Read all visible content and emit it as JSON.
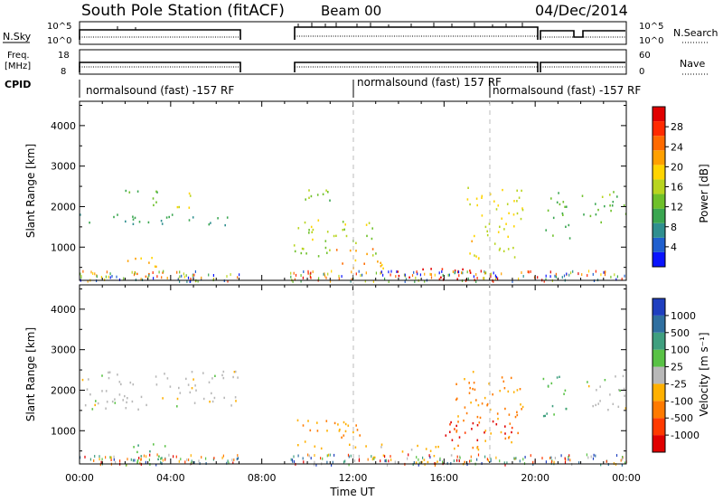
{
  "header": {
    "station": "South Pole Station (fitACF)",
    "beam": "Beam 00",
    "date": "04/Dec/2014"
  },
  "strip_labels": {
    "nsky": "N.Sky",
    "nsearch": "N.Search",
    "freq_line1": "Freq.",
    "freq_line2": "[MHz]",
    "nave": "Nave",
    "cpid": "CPID",
    "nsky_top": "10^5",
    "nsky_bottom": "10^0",
    "nsearch_top": "10^5",
    "nsearch_bottom": "10^0",
    "freq_top": "18",
    "freq_bottom": "8",
    "nave_top": "60",
    "nave_bottom": "0"
  },
  "cpid_segments": [
    {
      "label": "normalsound (fast) -157 RF",
      "start_hour": 0.0
    },
    {
      "label": "normalsound (fast) 157 RF",
      "start_hour": 12.0
    },
    {
      "label": "normalsound (fast) -157 RF",
      "start_hour": 18.0
    }
  ],
  "axes": {
    "ylabel": "Slant Range [km]",
    "xlabel": "Time UT",
    "xticks": [
      "00:00",
      "04:00",
      "08:00",
      "12:00",
      "16:00",
      "20:00",
      "00:00"
    ],
    "yticks": [
      "1000",
      "2000",
      "3000",
      "4000"
    ]
  },
  "power_colorbar": {
    "label": "Power [dB]",
    "ticks": [
      "4",
      "8",
      "12",
      "16",
      "20",
      "24",
      "28"
    ],
    "colors": [
      "#0a14ff",
      "#1f5fcf",
      "#2f8f8f",
      "#3aa650",
      "#6ec02a",
      "#b8d41f",
      "#ffd400",
      "#ffa000",
      "#ff6a00",
      "#ff2a00",
      "#e00000"
    ]
  },
  "velocity_colorbar": {
    "label": "Velocity [m s⁻¹]",
    "ticks": [
      "1000",
      "500",
      "100",
      "25",
      "-25",
      "-100",
      "-500",
      "-1000"
    ],
    "colors": [
      "#1f3fbf",
      "#2f6fa0",
      "#3f9f7f",
      "#59c245",
      "#b8b8b8",
      "#ffb000",
      "#ff7a00",
      "#ff3a00",
      "#e00000"
    ]
  },
  "chart_data": {
    "type": "heatmap",
    "title": "South Pole Station (fitACF)  Beam 00  04/Dec/2014",
    "xlabel": "Time UT",
    "ylabel": "Slant Range [km]",
    "xlim": [
      0,
      24
    ],
    "ylim": [
      180,
      4600
    ],
    "data_gaps_hours": [
      [
        7.0,
        9.2
      ],
      [
        20.1,
        20.25
      ],
      [
        21.7,
        21.85
      ]
    ],
    "panels": [
      {
        "name": "Power [dB]",
        "clim": [
          0,
          32
        ],
        "regions": [
          {
            "t": [
              0.0,
              7.0
            ],
            "r": [
              1550,
              1850
            ],
            "v": 9
          },
          {
            "t": [
              1.5,
              3.5
            ],
            "r": [
              2300,
              2500
            ],
            "v": 10
          },
          {
            "t": [
              3.2,
              5.0
            ],
            "r": [
              1950,
              2400
            ],
            "v": 16
          },
          {
            "t": [
              2.0,
              3.8
            ],
            "r": [
              300,
              800
            ],
            "v": 22
          },
          {
            "t": [
              2.4,
              3.3
            ],
            "r": [
              200,
              380
            ],
            "v": 28
          },
          {
            "t": [
              9.3,
              13.0
            ],
            "r": [
              800,
              1700
            ],
            "v": 15
          },
          {
            "t": [
              9.3,
              11.0
            ],
            "r": [
              2000,
              2500
            ],
            "v": 12
          },
          {
            "t": [
              11.0,
              13.5
            ],
            "r": [
              500,
              1000
            ],
            "v": 22
          },
          {
            "t": [
              13.5,
              17.3
            ],
            "r": [
              200,
              550
            ],
            "v": 30
          },
          {
            "t": [
              17.0,
              19.5
            ],
            "r": [
              700,
              2500
            ],
            "v": 18
          },
          {
            "t": [
              20.3,
              21.5
            ],
            "r": [
              1200,
              2400
            ],
            "v": 12
          },
          {
            "t": [
              22.0,
              24.0
            ],
            "r": [
              1600,
              2400
            ],
            "v": 12
          }
        ]
      },
      {
        "name": "Velocity [m s^-1]",
        "clim": [
          -1000,
          1000
        ],
        "regions": [
          {
            "t": [
              0.0,
              7.0
            ],
            "r": [
              1550,
              2500
            ],
            "v": 0
          },
          {
            "t": [
              1.8,
              3.8
            ],
            "r": [
              200,
              700
            ],
            "v": 300
          },
          {
            "t": [
              9.3,
              12.5
            ],
            "r": [
              500,
              1300
            ],
            "v": -300
          },
          {
            "t": [
              12.5,
              17.5
            ],
            "r": [
              200,
              700
            ],
            "v": -200
          },
          {
            "t": [
              16.5,
              19.5
            ],
            "r": [
              700,
              2500
            ],
            "v": -400
          },
          {
            "t": [
              16.0,
              19.0
            ],
            "r": [
              700,
              1300
            ],
            "v": -800
          },
          {
            "t": [
              20.3,
              21.5
            ],
            "r": [
              1300,
              2400
            ],
            "v": 400
          },
          {
            "t": [
              22.0,
              24.0
            ],
            "r": [
              1500,
              2400
            ],
            "v": 0
          }
        ]
      }
    ]
  }
}
